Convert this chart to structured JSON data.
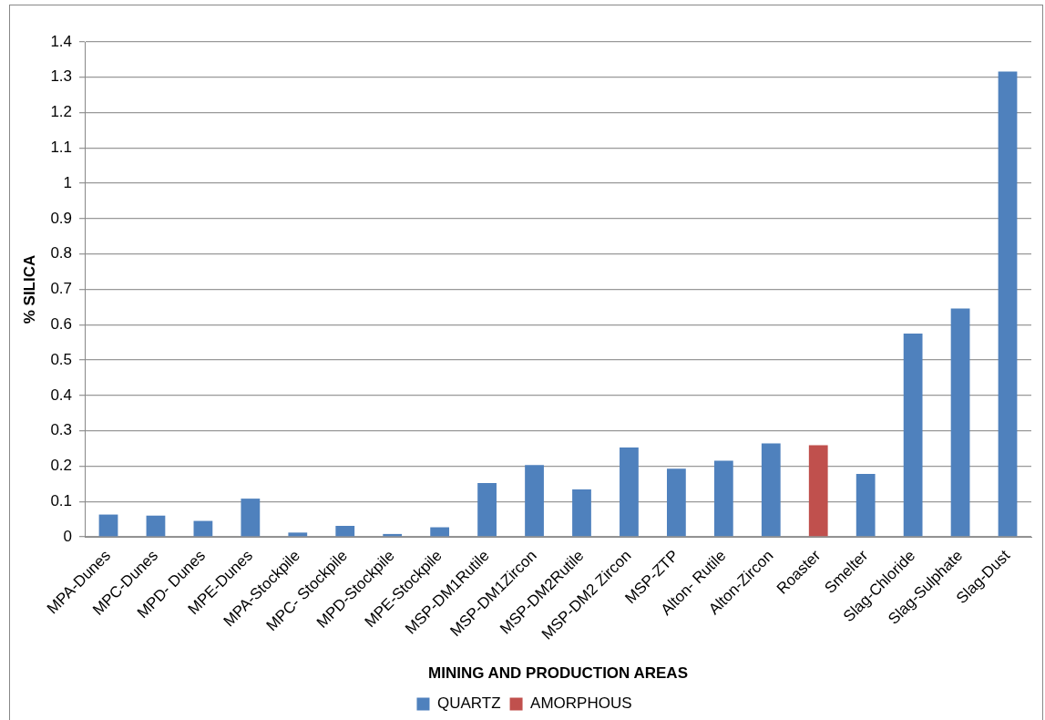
{
  "chart_data": {
    "type": "bar",
    "xlabel": "MINING AND PRODUCTION AREAS",
    "ylabel": "% SILICA",
    "categories": [
      "MPA-Dunes",
      "MPC-Dunes",
      "MPD- Dunes",
      "MPE-Dunes",
      "MPA-Stockpile",
      "MPC- Stockpile",
      "MPD-Stockpile",
      "MPE-Stockpile",
      "MSP-DM1Rutile",
      "MSP-DM1Zircon",
      "MSP-DM2Rutile",
      "MSP-DM2 Zircon",
      "MSP-ZTP",
      "Alton- Rutile",
      "Alton-Zircon",
      "Roaster",
      "Smelter",
      "Slag-Chloride",
      "Slag-Sulphate",
      "Slag-Dust"
    ],
    "series": [
      {
        "name": "QUARTZ",
        "color": "#4f81bd",
        "values": [
          0.063,
          0.06,
          0.045,
          0.108,
          0.012,
          0.031,
          0.008,
          0.027,
          0.152,
          0.203,
          0.134,
          0.253,
          0.193,
          0.215,
          0.264,
          null,
          0.178,
          0.575,
          0.646,
          1.316
        ]
      },
      {
        "name": "AMORPHOUS",
        "color": "#c0504d",
        "values": [
          null,
          null,
          null,
          null,
          null,
          null,
          null,
          null,
          null,
          null,
          null,
          null,
          null,
          null,
          null,
          0.259,
          null,
          null,
          null,
          null
        ]
      }
    ],
    "ylim": [
      0,
      1.4
    ],
    "yticks": [
      0,
      0.1,
      0.2,
      0.3,
      0.4,
      0.5,
      0.6,
      0.7,
      0.8,
      0.9,
      1,
      1.1,
      1.2,
      1.3,
      1.4
    ],
    "grid": "y",
    "legend": "bottom"
  }
}
